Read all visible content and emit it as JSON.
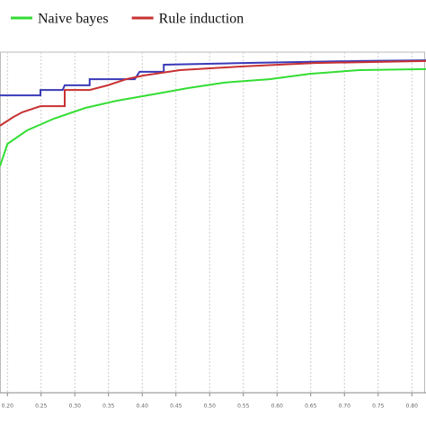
{
  "chart_data": {
    "type": "line",
    "xlim": [
      0.189,
      0.821
    ],
    "ylim": [
      0,
      1
    ],
    "xticks": [
      {
        "value": 0.2,
        "label": "0.20"
      },
      {
        "value": 0.25,
        "label": "0.25"
      },
      {
        "value": 0.3,
        "label": "0.30"
      },
      {
        "value": 0.35,
        "label": "0.35"
      },
      {
        "value": 0.4,
        "label": "0.40"
      },
      {
        "value": 0.45,
        "label": "0.45"
      },
      {
        "value": 0.5,
        "label": "0.50"
      },
      {
        "value": 0.55,
        "label": "0.55"
      },
      {
        "value": 0.6,
        "label": "0.60"
      },
      {
        "value": 0.65,
        "label": "0.65"
      },
      {
        "value": 0.7,
        "label": "0.70"
      },
      {
        "value": 0.75,
        "label": "0.75"
      },
      {
        "value": 0.8,
        "label": "0.80"
      }
    ],
    "grid": true,
    "series": [
      {
        "color": "#3a3ab8",
        "x": [
          0.189,
          0.249,
          0.249,
          0.282,
          0.285,
          0.322,
          0.322,
          0.389,
          0.396,
          0.432,
          0.432,
          0.549,
          0.722,
          0.821
        ],
        "values": [
          0.877,
          0.877,
          0.893,
          0.893,
          0.907,
          0.907,
          0.925,
          0.925,
          0.947,
          0.947,
          0.968,
          0.973,
          0.979,
          0.981
        ]
      },
      {
        "name": "Naive bayes",
        "color": "#33dd33",
        "x": [
          0.189,
          0.2,
          0.229,
          0.269,
          0.316,
          0.362,
          0.416,
          0.469,
          0.522,
          0.589,
          0.649,
          0.722,
          0.821
        ],
        "values": [
          0.667,
          0.733,
          0.773,
          0.808,
          0.84,
          0.861,
          0.88,
          0.899,
          0.915,
          0.925,
          0.941,
          0.952,
          0.955
        ]
      },
      {
        "name": "Rule induction",
        "color": "#c83232",
        "x": [
          0.189,
          0.209,
          0.222,
          0.249,
          0.285,
          0.285,
          0.322,
          0.349,
          0.376,
          0.402,
          0.456,
          0.549,
          0.656,
          0.821
        ],
        "values": [
          0.787,
          0.813,
          0.827,
          0.845,
          0.845,
          0.893,
          0.893,
          0.907,
          0.925,
          0.936,
          0.952,
          0.963,
          0.973,
          0.979
        ]
      }
    ]
  }
}
